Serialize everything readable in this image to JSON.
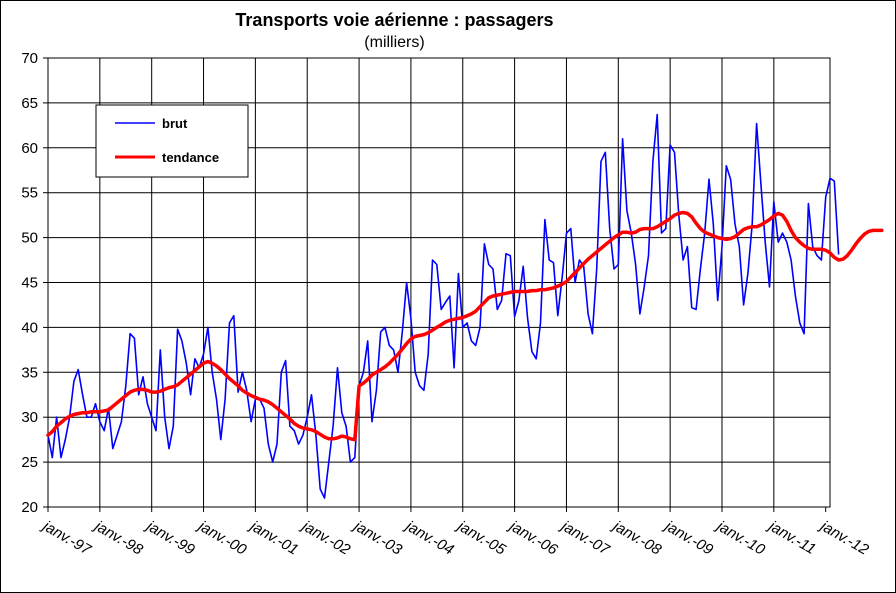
{
  "chart_data": {
    "type": "line",
    "title": "Transports voie aérienne : passagers",
    "subtitle": "(milliers)",
    "xlabel": "",
    "ylabel": "",
    "ylim": [
      20,
      70
    ],
    "yticks": [
      20,
      25,
      30,
      35,
      40,
      45,
      50,
      55,
      60,
      65,
      70
    ],
    "x_tick_labels": [
      "janv.-97",
      "janv.-98",
      "janv.-99",
      "janv.-00",
      "janv.-01",
      "janv.-02",
      "janv.-03",
      "janv.-04",
      "janv.-05",
      "janv.-06",
      "janv.-07",
      "janv.-08",
      "janv.-09",
      "janv.-10",
      "janv.-11",
      "janv.-12"
    ],
    "grid": true,
    "legend_position": "top-left",
    "series": [
      {
        "name": "brut",
        "color": "#0000ff",
        "start": "1997-01",
        "frequency": "monthly",
        "values": [
          28,
          25.5,
          30,
          25.5,
          27.5,
          30,
          34,
          35.3,
          32.5,
          30,
          30,
          31.5,
          29.5,
          28.5,
          31,
          26.5,
          28,
          29.5,
          33.5,
          39.3,
          38.8,
          32.5,
          34.5,
          31.5,
          30,
          28.5,
          37.5,
          30,
          26.5,
          29,
          39.8,
          38.5,
          36,
          32.5,
          36.5,
          35.5,
          37,
          40,
          35,
          32,
          27.5,
          32,
          40.5,
          41.3,
          32.8,
          35,
          33,
          29.5,
          32,
          32,
          31,
          27,
          25,
          27,
          35,
          36.3,
          29,
          28.5,
          27,
          28,
          30,
          32.5,
          28,
          22,
          21,
          25,
          29,
          35.5,
          30.5,
          29,
          25,
          25.5,
          33.5,
          35,
          38.5,
          29.5,
          33,
          39.5,
          40,
          38,
          37.5,
          35,
          39.5,
          45,
          41,
          35,
          33.5,
          33,
          37,
          47.5,
          47,
          42,
          42.8,
          43.5,
          35.5,
          46,
          40,
          40.5,
          38.5,
          38,
          40,
          49.3,
          47,
          46.5,
          42,
          43,
          48.2,
          48,
          41.2,
          43,
          46.8,
          41,
          37.3,
          36.5,
          40.5,
          52,
          47.5,
          47.2,
          41.3,
          45.5,
          50.5,
          51,
          45,
          47.5,
          46.8,
          41.5,
          39.3,
          46.5,
          58.5,
          59.5,
          51,
          46.5,
          47,
          61,
          53,
          50.5,
          47,
          41.5,
          44.5,
          48,
          58.5,
          63.7,
          50.5,
          51,
          60.3,
          59.5,
          52.5,
          47.5,
          49,
          42.2,
          42,
          46.5,
          50.5,
          56.5,
          51.5,
          43,
          49,
          58,
          56.5,
          51.5,
          49,
          42.5,
          46,
          51.5,
          62.7,
          56,
          49.5,
          44.5,
          54,
          49.5,
          50.5,
          49.5,
          47.5,
          43.5,
          40.5,
          39.3,
          53.8,
          49,
          48,
          47.5,
          54.5,
          56.6,
          56.3,
          48.2
        ]
      },
      {
        "name": "tendance",
        "color": "#ff0000",
        "start": "1997-01",
        "frequency": "monthly",
        "values": [
          28,
          28.4,
          29,
          29.4,
          29.8,
          30.1,
          30.3,
          30.4,
          30.5,
          30.5,
          30.6,
          30.6,
          30.6,
          30.7,
          30.8,
          31.2,
          31.6,
          32,
          32.4,
          32.8,
          33,
          33.1,
          33.1,
          33,
          32.8,
          32.8,
          32.9,
          33.1,
          33.3,
          33.4,
          33.6,
          34,
          34.4,
          34.8,
          35.2,
          35.6,
          36,
          36.2,
          36,
          35.7,
          35.3,
          34.8,
          34.3,
          33.9,
          33.5,
          33,
          32.7,
          32.4,
          32.2,
          32,
          31.9,
          31.7,
          31.4,
          31,
          30.6,
          30.2,
          29.8,
          29.3,
          29,
          28.8,
          28.7,
          28.6,
          28.4,
          28.1,
          27.8,
          27.6,
          27.6,
          27.7,
          27.9,
          27.8,
          27.6,
          27.5,
          33.5,
          33.8,
          34.2,
          34.7,
          35,
          35.3,
          35.6,
          36,
          36.5,
          37,
          37.6,
          38.2,
          38.7,
          39,
          39.1,
          39.2,
          39.4,
          39.7,
          40,
          40.3,
          40.6,
          40.8,
          40.9,
          41,
          41.1,
          41.3,
          41.5,
          41.8,
          42.3,
          42.8,
          43.3,
          43.5,
          43.6,
          43.7,
          43.8,
          43.9,
          44,
          44,
          44,
          44,
          44.1,
          44.1,
          44.2,
          44.2,
          44.3,
          44.4,
          44.6,
          44.8,
          45.1,
          45.6,
          46.1,
          46.6,
          47.1,
          47.6,
          48,
          48.4,
          48.8,
          49.2,
          49.6,
          50,
          50.3,
          50.6,
          50.6,
          50.5,
          50.6,
          50.9,
          51,
          51,
          51,
          51.2,
          51.5,
          51.8,
          52.1,
          52.5,
          52.7,
          52.8,
          52.7,
          52.3,
          51.6,
          51,
          50.6,
          50.4,
          50.2,
          50,
          49.9,
          49.8,
          49.9,
          50.1,
          50.5,
          50.9,
          51.1,
          51.2,
          51.2,
          51.4,
          51.7,
          52,
          52.4,
          52.7,
          52.5,
          51.8,
          50.8,
          50,
          49.5,
          49.1,
          48.8,
          48.7,
          48.7,
          48.7,
          48.6,
          48.3,
          47.8,
          47.5,
          47.6,
          48,
          48.6,
          49.3,
          49.9,
          50.4,
          50.7,
          50.8,
          50.8,
          50.8
        ]
      }
    ]
  }
}
